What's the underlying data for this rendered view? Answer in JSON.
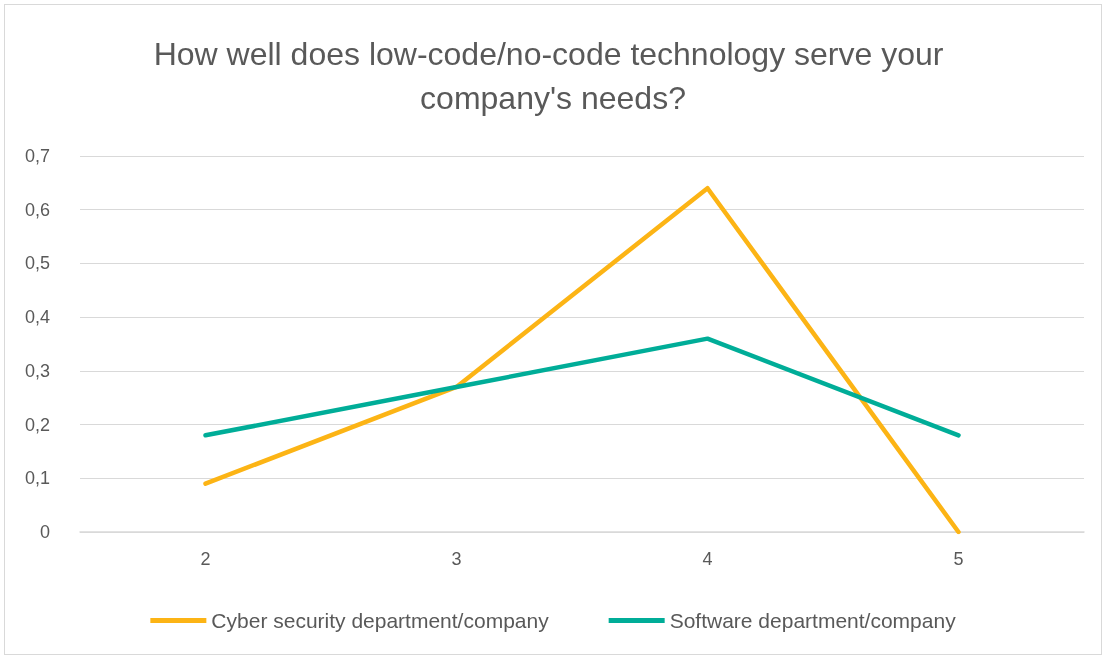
{
  "chart_data": {
    "type": "line",
    "title": "How well does low-code/no-code technology serve your company's needs?",
    "categories": [
      "2",
      "3",
      "4",
      "5"
    ],
    "series": [
      {
        "name": "Cyber security department/company",
        "color": "#fcb415",
        "values": [
          0.09,
          0.27,
          0.64,
          0
        ]
      },
      {
        "name": "Software department/company",
        "color": "#00ad98",
        "values": [
          0.18,
          0.27,
          0.36,
          0.18
        ]
      }
    ],
    "ylim": [
      0,
      0.7
    ],
    "yticks": [
      {
        "value": 0,
        "label": "0"
      },
      {
        "value": 0.1,
        "label": "0,1"
      },
      {
        "value": 0.2,
        "label": "0,2"
      },
      {
        "value": 0.3,
        "label": "0,3"
      },
      {
        "value": 0.4,
        "label": "0,4"
      },
      {
        "value": 0.5,
        "label": "0,5"
      },
      {
        "value": 0.6,
        "label": "0,6"
      },
      {
        "value": 0.7,
        "label": "0,7"
      }
    ],
    "grid": "y",
    "legend": "bottom",
    "marker": "none",
    "line_style": "solid"
  }
}
